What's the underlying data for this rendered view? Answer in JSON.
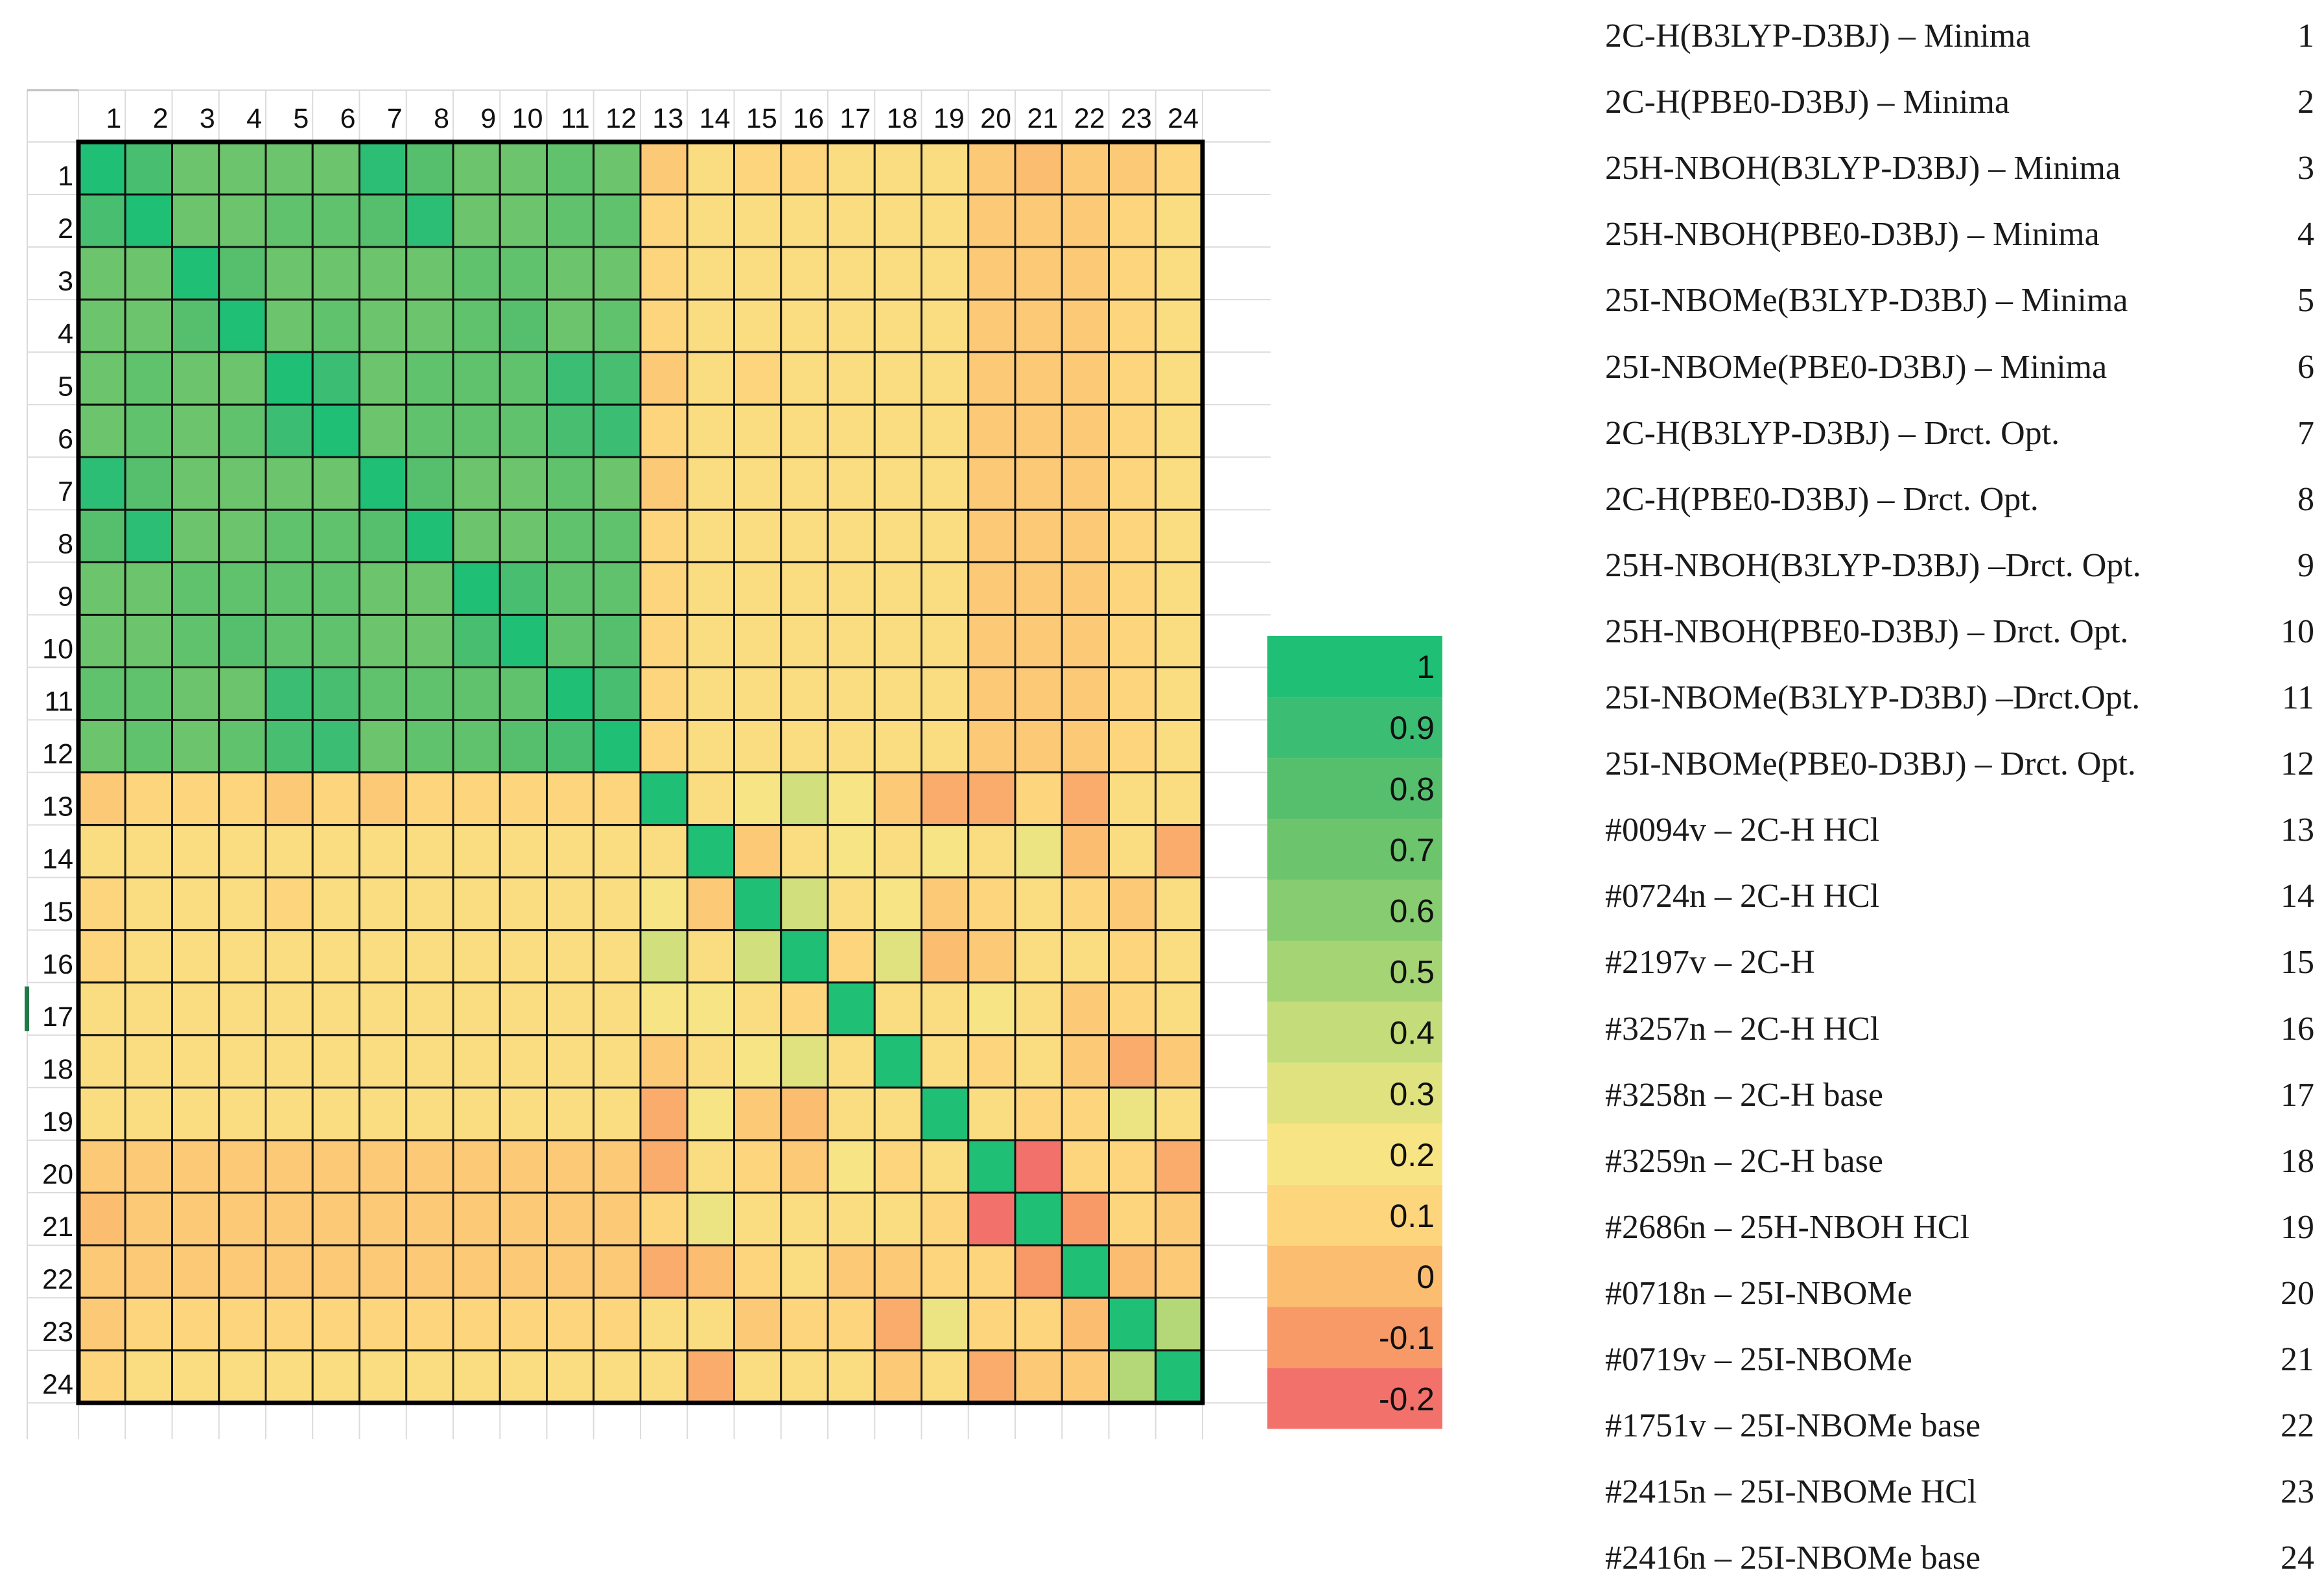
{
  "chart_data": {
    "type": "heatmap",
    "title": "",
    "row_labels": [
      "1",
      "2",
      "3",
      "4",
      "5",
      "6",
      "7",
      "8",
      "9",
      "10",
      "11",
      "12",
      "13",
      "14",
      "15",
      "16",
      "17",
      "18",
      "19",
      "20",
      "21",
      "22",
      "23",
      "24"
    ],
    "col_labels": [
      "1",
      "2",
      "3",
      "4",
      "5",
      "6",
      "7",
      "8",
      "9",
      "10",
      "11",
      "12",
      "13",
      "14",
      "15",
      "16",
      "17",
      "18",
      "19",
      "20",
      "21",
      "22",
      "23",
      "24"
    ],
    "values": [
      [
        1.0,
        0.85,
        0.7,
        0.7,
        0.7,
        0.7,
        0.95,
        0.8,
        0.7,
        0.7,
        0.75,
        0.7,
        0.05,
        0.15,
        0.1,
        0.1,
        0.15,
        0.15,
        0.15,
        0.05,
        0.0,
        0.05,
        0.05,
        0.1
      ],
      [
        0.85,
        1.0,
        0.7,
        0.7,
        0.75,
        0.75,
        0.8,
        0.95,
        0.7,
        0.7,
        0.75,
        0.75,
        0.1,
        0.15,
        0.15,
        0.15,
        0.15,
        0.15,
        0.15,
        0.05,
        0.05,
        0.05,
        0.1,
        0.15
      ],
      [
        0.7,
        0.7,
        1.0,
        0.8,
        0.7,
        0.7,
        0.7,
        0.7,
        0.75,
        0.75,
        0.7,
        0.7,
        0.1,
        0.15,
        0.15,
        0.15,
        0.15,
        0.15,
        0.15,
        0.05,
        0.05,
        0.05,
        0.1,
        0.15
      ],
      [
        0.7,
        0.7,
        0.8,
        1.0,
        0.7,
        0.75,
        0.7,
        0.7,
        0.75,
        0.8,
        0.7,
        0.75,
        0.1,
        0.15,
        0.15,
        0.15,
        0.15,
        0.15,
        0.15,
        0.05,
        0.05,
        0.05,
        0.1,
        0.15
      ],
      [
        0.7,
        0.75,
        0.7,
        0.7,
        1.0,
        0.9,
        0.7,
        0.75,
        0.75,
        0.75,
        0.9,
        0.85,
        0.05,
        0.15,
        0.1,
        0.15,
        0.15,
        0.15,
        0.15,
        0.05,
        0.05,
        0.05,
        0.1,
        0.15
      ],
      [
        0.7,
        0.75,
        0.7,
        0.75,
        0.9,
        1.0,
        0.7,
        0.75,
        0.75,
        0.75,
        0.85,
        0.9,
        0.1,
        0.15,
        0.15,
        0.15,
        0.15,
        0.15,
        0.15,
        0.05,
        0.05,
        0.05,
        0.1,
        0.15
      ],
      [
        0.95,
        0.8,
        0.7,
        0.7,
        0.7,
        0.7,
        1.0,
        0.8,
        0.7,
        0.7,
        0.75,
        0.7,
        0.05,
        0.15,
        0.15,
        0.15,
        0.15,
        0.15,
        0.15,
        0.05,
        0.05,
        0.05,
        0.1,
        0.15
      ],
      [
        0.8,
        0.95,
        0.7,
        0.7,
        0.75,
        0.75,
        0.8,
        1.0,
        0.7,
        0.7,
        0.75,
        0.75,
        0.1,
        0.15,
        0.15,
        0.15,
        0.15,
        0.15,
        0.15,
        0.05,
        0.05,
        0.05,
        0.1,
        0.15
      ],
      [
        0.7,
        0.7,
        0.75,
        0.75,
        0.75,
        0.75,
        0.7,
        0.7,
        1.0,
        0.85,
        0.75,
        0.75,
        0.1,
        0.15,
        0.15,
        0.15,
        0.15,
        0.15,
        0.15,
        0.05,
        0.05,
        0.05,
        0.1,
        0.15
      ],
      [
        0.7,
        0.7,
        0.75,
        0.8,
        0.75,
        0.75,
        0.7,
        0.7,
        0.85,
        1.0,
        0.75,
        0.8,
        0.1,
        0.15,
        0.15,
        0.15,
        0.15,
        0.15,
        0.15,
        0.05,
        0.05,
        0.05,
        0.1,
        0.15
      ],
      [
        0.75,
        0.75,
        0.7,
        0.7,
        0.9,
        0.85,
        0.75,
        0.75,
        0.75,
        0.75,
        1.0,
        0.85,
        0.1,
        0.15,
        0.15,
        0.15,
        0.15,
        0.15,
        0.15,
        0.05,
        0.05,
        0.05,
        0.1,
        0.15
      ],
      [
        0.7,
        0.75,
        0.7,
        0.75,
        0.85,
        0.9,
        0.7,
        0.75,
        0.75,
        0.8,
        0.85,
        1.0,
        0.1,
        0.15,
        0.15,
        0.15,
        0.15,
        0.15,
        0.15,
        0.05,
        0.05,
        0.05,
        0.1,
        0.15
      ],
      [
        0.05,
        0.1,
        0.1,
        0.1,
        0.05,
        0.1,
        0.05,
        0.1,
        0.1,
        0.1,
        0.1,
        0.1,
        1.0,
        0.15,
        0.2,
        0.35,
        0.2,
        0.05,
        -0.05,
        -0.05,
        0.1,
        -0.05,
        0.15,
        0.15
      ],
      [
        0.15,
        0.15,
        0.15,
        0.15,
        0.15,
        0.15,
        0.15,
        0.15,
        0.15,
        0.15,
        0.15,
        0.15,
        0.15,
        1.0,
        0.05,
        0.15,
        0.2,
        0.15,
        0.2,
        0.15,
        0.25,
        0.0,
        0.15,
        -0.05
      ],
      [
        0.1,
        0.15,
        0.15,
        0.15,
        0.1,
        0.15,
        0.15,
        0.15,
        0.15,
        0.15,
        0.15,
        0.15,
        0.2,
        0.05,
        1.0,
        0.35,
        0.15,
        0.2,
        0.05,
        0.1,
        0.15,
        0.1,
        0.05,
        0.15
      ],
      [
        0.1,
        0.15,
        0.15,
        0.15,
        0.15,
        0.15,
        0.15,
        0.15,
        0.15,
        0.15,
        0.15,
        0.15,
        0.35,
        0.15,
        0.35,
        1.0,
        0.1,
        0.3,
        0.0,
        0.05,
        0.15,
        0.15,
        0.1,
        0.15
      ],
      [
        0.15,
        0.15,
        0.15,
        0.15,
        0.15,
        0.15,
        0.15,
        0.15,
        0.15,
        0.15,
        0.15,
        0.15,
        0.2,
        0.2,
        0.15,
        0.1,
        1.0,
        0.15,
        0.15,
        0.2,
        0.15,
        0.05,
        0.1,
        0.15
      ],
      [
        0.15,
        0.15,
        0.15,
        0.15,
        0.15,
        0.15,
        0.15,
        0.15,
        0.15,
        0.15,
        0.15,
        0.15,
        0.05,
        0.15,
        0.2,
        0.3,
        0.15,
        1.0,
        0.15,
        0.1,
        0.15,
        0.05,
        -0.05,
        0.05
      ],
      [
        0.15,
        0.15,
        0.15,
        0.15,
        0.15,
        0.15,
        0.15,
        0.15,
        0.15,
        0.15,
        0.15,
        0.15,
        -0.05,
        0.2,
        0.05,
        0.0,
        0.15,
        0.15,
        1.0,
        0.15,
        0.1,
        0.1,
        0.25,
        0.15
      ],
      [
        0.05,
        0.05,
        0.05,
        0.05,
        0.05,
        0.05,
        0.05,
        0.05,
        0.05,
        0.05,
        0.05,
        0.05,
        -0.05,
        0.15,
        0.1,
        0.05,
        0.2,
        0.1,
        0.15,
        1.0,
        -0.2,
        0.1,
        0.1,
        -0.05
      ],
      [
        0.0,
        0.05,
        0.05,
        0.05,
        0.05,
        0.05,
        0.05,
        0.05,
        0.05,
        0.05,
        0.05,
        0.05,
        0.1,
        0.25,
        0.15,
        0.15,
        0.15,
        0.15,
        0.1,
        -0.2,
        1.0,
        -0.1,
        0.1,
        0.05
      ],
      [
        0.05,
        0.05,
        0.05,
        0.05,
        0.05,
        0.05,
        0.05,
        0.05,
        0.05,
        0.05,
        0.05,
        0.05,
        -0.05,
        0.0,
        0.1,
        0.15,
        0.05,
        0.05,
        0.1,
        0.1,
        -0.1,
        1.0,
        0.0,
        0.05
      ],
      [
        0.05,
        0.1,
        0.1,
        0.1,
        0.1,
        0.1,
        0.1,
        0.1,
        0.1,
        0.1,
        0.1,
        0.1,
        0.15,
        0.15,
        0.05,
        0.1,
        0.1,
        -0.05,
        0.25,
        0.1,
        0.1,
        0.0,
        1.0,
        0.45
      ],
      [
        0.1,
        0.15,
        0.15,
        0.15,
        0.15,
        0.15,
        0.15,
        0.15,
        0.15,
        0.15,
        0.15,
        0.15,
        0.15,
        -0.05,
        0.15,
        0.15,
        0.15,
        0.05,
        0.15,
        -0.05,
        0.05,
        0.05,
        0.45,
        1.0
      ]
    ],
    "scale": {
      "min": -0.2,
      "max": 1,
      "ticks": [
        "1",
        "0.9",
        "0.8",
        "0.7",
        "0.6",
        "0.5",
        "0.4",
        "0.3",
        "0.2",
        "0.1",
        "0",
        "-0.1",
        "-0.2"
      ],
      "colors": [
        "#1fbf76",
        "#3bbd73",
        "#55bf6e",
        "#6cc46c",
        "#87cc70",
        "#a5d474",
        "#c4dc7a",
        "#e0e27f",
        "#f7e484",
        "#fdd57c",
        "#fbbd70",
        "#f79a67",
        "#f2726b"
      ]
    },
    "legend": [
      {
        "label": "2C-H(B3LYP-D3BJ) – Minima",
        "num": "1"
      },
      {
        "label": "2C-H(PBE0-D3BJ) – Minima",
        "num": "2"
      },
      {
        "label": "25H-NBOH(B3LYP-D3BJ) – Minima",
        "num": "3"
      },
      {
        "label": "25H-NBOH(PBE0-D3BJ) – Minima",
        "num": "4"
      },
      {
        "label": "25I-NBOMe(B3LYP-D3BJ) – Minima",
        "num": "5"
      },
      {
        "label": "25I-NBOMe(PBE0-D3BJ) – Minima",
        "num": "6"
      },
      {
        "label": "2C-H(B3LYP-D3BJ) – Drct. Opt.",
        "num": "7"
      },
      {
        "label": "2C-H(PBE0-D3BJ) – Drct. Opt.",
        "num": "8"
      },
      {
        "label": "25H-NBOH(B3LYP-D3BJ) –Drct. Opt.",
        "num": "9"
      },
      {
        "label": "25H-NBOH(PBE0-D3BJ) – Drct. Opt.",
        "num": "10"
      },
      {
        "label": "25I-NBOMe(B3LYP-D3BJ) –Drct.Opt.",
        "num": "11"
      },
      {
        "label": "25I-NBOMe(PBE0-D3BJ) – Drct. Opt.",
        "num": "12"
      },
      {
        "label": "#0094v – 2C-H HCl",
        "num": "13"
      },
      {
        "label": "#0724n – 2C-H HCl",
        "num": "14"
      },
      {
        "label": "#2197v – 2C-H",
        "num": "15"
      },
      {
        "label": "#3257n – 2C-H HCl",
        "num": "16"
      },
      {
        "label": "#3258n – 2C-H base",
        "num": "17"
      },
      {
        "label": "#3259n – 2C-H base",
        "num": "18"
      },
      {
        "label": "#2686n – 25H-NBOH HCl",
        "num": "19"
      },
      {
        "label": "#0718n – 25I-NBOMe",
        "num": "20"
      },
      {
        "label": "#0719v – 25I-NBOMe",
        "num": "21"
      },
      {
        "label": "#1751v – 25I-NBOMe base",
        "num": "22"
      },
      {
        "label": "#2415n – 25I-NBOMe HCl",
        "num": "23"
      },
      {
        "label": "#2416n – 25I-NBOMe base",
        "num": "24"
      }
    ]
  }
}
